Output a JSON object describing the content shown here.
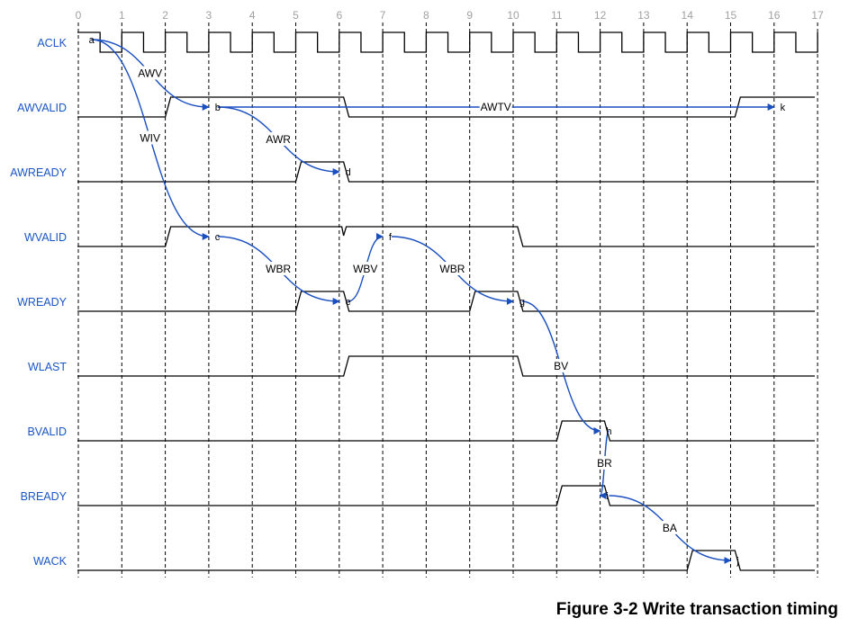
{
  "figure": {
    "caption": "Figure 3-2 Write transaction timing"
  },
  "timeline": {
    "cycle_labels": [
      "0",
      "1",
      "2",
      "3",
      "4",
      "5",
      "6",
      "7",
      "8",
      "9",
      "10",
      "11",
      "12",
      "13",
      "14",
      "15",
      "16",
      "17"
    ]
  },
  "signals": [
    {
      "name": "ACLK",
      "kind": "clock"
    },
    {
      "name": "AWVALID",
      "kind": "level",
      "high": [
        [
          2,
          6.1
        ],
        [
          15.1,
          17
        ]
      ]
    },
    {
      "name": "AWREADY",
      "kind": "level",
      "high": [
        [
          5,
          6.1
        ]
      ]
    },
    {
      "name": "WVALID",
      "kind": "level",
      "high": [
        [
          2,
          6.1
        ],
        [
          6.1,
          10.1
        ]
      ],
      "glitch_at": 6.1
    },
    {
      "name": "WREADY",
      "kind": "level",
      "high": [
        [
          5,
          6.1
        ],
        [
          9,
          10.1
        ]
      ]
    },
    {
      "name": "WLAST",
      "kind": "level",
      "high": [
        [
          6.1,
          10.1
        ]
      ]
    },
    {
      "name": "BVALID",
      "kind": "level",
      "high": [
        [
          11,
          12.1
        ]
      ]
    },
    {
      "name": "BREADY",
      "kind": "level",
      "high": [
        [
          11,
          12.1
        ]
      ]
    },
    {
      "name": "WACK",
      "kind": "level",
      "high": [
        [
          14,
          15.1
        ]
      ]
    }
  ],
  "events": [
    {
      "id": "a",
      "signal": "ACLK",
      "t": 0.2
    },
    {
      "id": "b",
      "signal": "AWVALID",
      "t": 3.1
    },
    {
      "id": "c",
      "signal": "WVALID",
      "t": 3.1
    },
    {
      "id": "d",
      "signal": "AWREADY",
      "t": 6.1
    },
    {
      "id": "e",
      "signal": "WREADY",
      "t": 6.1
    },
    {
      "id": "f",
      "signal": "WVALID",
      "t": 7.1
    },
    {
      "id": "g",
      "signal": "WREADY",
      "t": 10.1
    },
    {
      "id": "h",
      "signal": "BVALID",
      "t": 12.1
    },
    {
      "id": "i",
      "signal": "BREADY",
      "t": 12.1
    },
    {
      "id": "j",
      "signal": "WACK",
      "t": 15.1
    },
    {
      "id": "k",
      "signal": "AWVALID",
      "t": 16.1
    }
  ],
  "arrows": [
    {
      "from": "a",
      "to": "b",
      "label": "AWV"
    },
    {
      "from": "a",
      "to": "c",
      "label": "WIV"
    },
    {
      "from": "b",
      "to": "d",
      "label": "AWR"
    },
    {
      "from": "b",
      "to": "k",
      "label": "AWTV"
    },
    {
      "from": "c",
      "to": "e",
      "label": "WBR"
    },
    {
      "from": "e",
      "to": "f",
      "label": "WBV"
    },
    {
      "from": "f",
      "to": "g",
      "label": "WBR"
    },
    {
      "from": "g",
      "to": "h",
      "label": "BV"
    },
    {
      "from": "h",
      "to": "i",
      "label": "BR"
    },
    {
      "from": "i",
      "to": "j",
      "label": "BA"
    }
  ],
  "colors": {
    "signal_label": "#1a56c4",
    "arrow": "#1a4fc0",
    "waveform": "#000000",
    "grid": "#000000",
    "cycle_label": "#a0a0a0"
  }
}
